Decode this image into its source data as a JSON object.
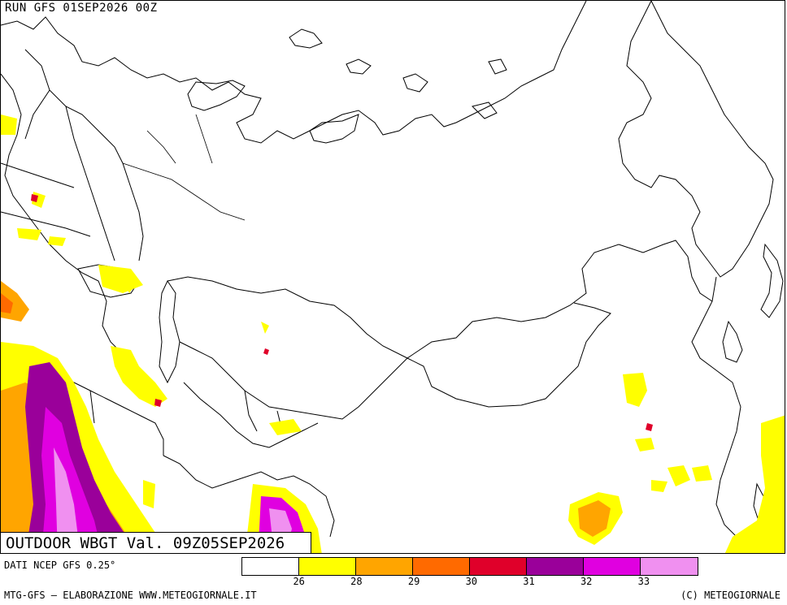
{
  "header": {
    "run_label": "RUN GFS 01SEP2026 00Z"
  },
  "map": {
    "product_label": "OUTDOOR WBGT Val. 09Z05SEP2026",
    "background_color": "#ffffff",
    "border_color": "#000000"
  },
  "legend": {
    "colors": [
      "#ffffff",
      "#ffff00",
      "#ffa500",
      "#ff6a00",
      "#e0002a",
      "#9a009a",
      "#e000e0",
      "#f090f0"
    ],
    "ticks": [
      "26",
      "28",
      "29",
      "30",
      "31",
      "32",
      "33"
    ]
  },
  "footer": {
    "data_source": "DATI NCEP GFS 0.25°",
    "credit_left": "MTG-GFS – ELABORAZIONE WWW.METEOGIORNALE.IT",
    "credit_right": "(C) METEOGIORNALE"
  }
}
